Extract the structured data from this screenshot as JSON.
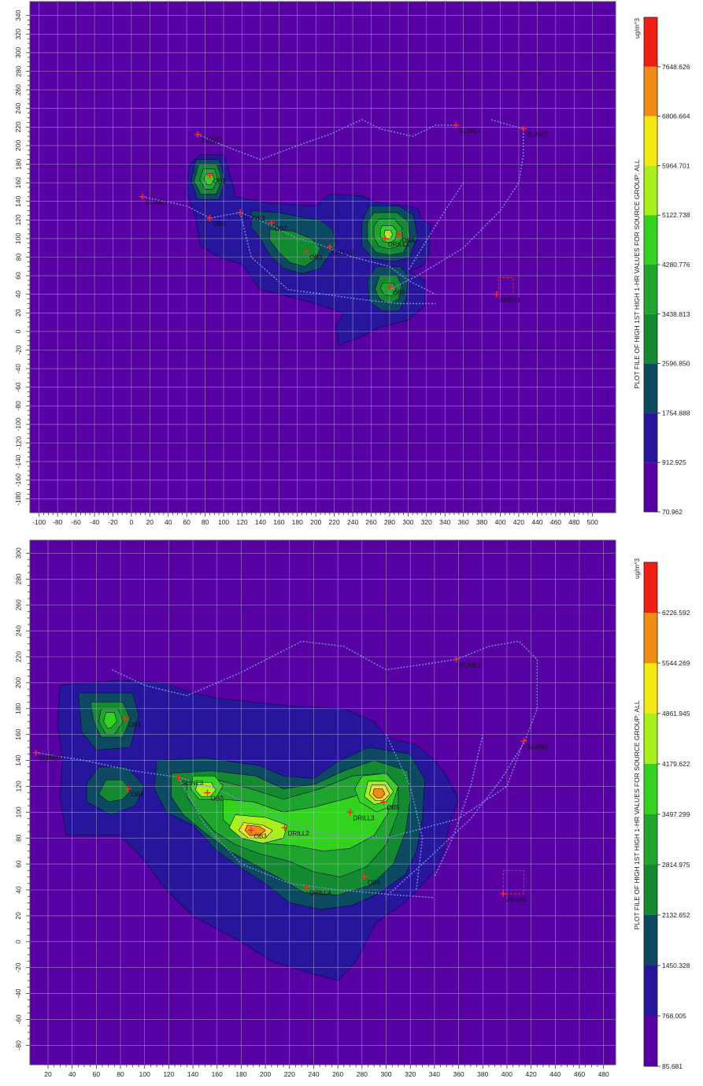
{
  "plots": [
    {
      "id": "top",
      "unit_label": "ug/m^3",
      "caption": "PLOT FILE OF  HIGH 1ST  HIGH 1-HR VALUES FOR SOURCE GROUP: ALL",
      "x_ticks": [
        -100,
        -80,
        -60,
        -40,
        -20,
        0,
        20,
        40,
        60,
        80,
        100,
        120,
        140,
        160,
        180,
        200,
        220,
        240,
        260,
        280,
        300,
        320,
        340,
        360,
        380,
        400,
        420,
        440,
        460,
        480,
        500
      ],
      "x_range": [
        -110,
        525
      ],
      "y_ticks": [
        -180,
        -160,
        -140,
        -120,
        -100,
        -80,
        -60,
        -40,
        -20,
        0,
        20,
        40,
        60,
        80,
        100,
        120,
        140,
        160,
        180,
        200,
        220,
        240,
        260,
        280,
        300,
        320,
        340
      ],
      "y_range": [
        -195,
        355
      ],
      "legend_values": [
        "7648.626",
        "6806.664",
        "5964.701",
        "5122.738",
        "4280.776",
        "3438.813",
        "2596.850",
        "1754.888",
        "912.925",
        "70.962"
      ],
      "sources": [
        {
          "label": "OB1",
          "x": 85,
          "y": 168
        },
        {
          "label": "OB2",
          "x": 152,
          "y": 117
        },
        {
          "label": "OB3",
          "x": 190,
          "y": 86
        },
        {
          "label": "DRILL2",
          "x": 215,
          "y": 91
        },
        {
          "label": "DRILL1",
          "x": 275,
          "y": 100
        },
        {
          "label": "OB6",
          "x": 290,
          "y": 104
        },
        {
          "label": "OB5",
          "x": 280,
          "y": 48
        },
        {
          "label": "SLINE1",
          "x": 72,
          "y": 212
        },
        {
          "label": "SLINE2",
          "x": 12,
          "y": 145
        },
        {
          "label": "SLINE3",
          "x": 118,
          "y": 128
        },
        {
          "label": "SLINE4",
          "x": 352,
          "y": 222
        },
        {
          "label": "SLINE5",
          "x": 425,
          "y": 218
        },
        {
          "label": "OB4",
          "x": 85,
          "y": 122
        },
        {
          "label": "AREA1",
          "x": 396,
          "y": 40
        }
      ],
      "area_box": {
        "x": [
          398,
          414
        ],
        "y": [
          40,
          58
        ]
      }
    },
    {
      "id": "bottom",
      "unit_label": "ug/m^3",
      "caption": "PLOT FILE OF  HIGH 1ST  HIGH 1-HR VALUES FOR SOURCE GROUP: ALL",
      "x_ticks": [
        20,
        40,
        60,
        80,
        100,
        120,
        140,
        160,
        180,
        200,
        220,
        240,
        260,
        280,
        300,
        320,
        340,
        360,
        380,
        400,
        420,
        440,
        460,
        480
      ],
      "x_range": [
        5,
        490
      ],
      "y_ticks": [
        -80,
        -60,
        -40,
        -20,
        0,
        20,
        40,
        60,
        80,
        100,
        120,
        140,
        160,
        180,
        200,
        220,
        240,
        260,
        280,
        300
      ],
      "y_range": [
        -95,
        310
      ],
      "legend_values": [
        "6226.592",
        "5544.269",
        "4861.945",
        "4179.622",
        "3497.299",
        "2814.975",
        "2132.652",
        "1450.328",
        "768.005",
        "85.681"
      ],
      "sources": [
        {
          "label": "OB1",
          "x": 84,
          "y": 172
        },
        {
          "label": "OB4",
          "x": 86,
          "y": 118
        },
        {
          "label": "OB2",
          "x": 152,
          "y": 115
        },
        {
          "label": "OB3",
          "x": 188,
          "y": 86
        },
        {
          "label": "DRILL2",
          "x": 216,
          "y": 88
        },
        {
          "label": "DRILL3",
          "x": 270,
          "y": 100
        },
        {
          "label": "OB5",
          "x": 298,
          "y": 108
        },
        {
          "label": "OB4",
          "x": 282,
          "y": 50
        },
        {
          "label": "DRILL4",
          "x": 234,
          "y": 42
        },
        {
          "label": "SLINE5",
          "x": 10,
          "y": 146
        },
        {
          "label": "SLINE3",
          "x": 128,
          "y": 127
        },
        {
          "label": "SLINE1",
          "x": 358,
          "y": 218
        },
        {
          "label": "SLINE2",
          "x": 414,
          "y": 155
        },
        {
          "label": "AREA1",
          "x": 397,
          "y": 37
        }
      ],
      "area_box": {
        "x": [
          397,
          414
        ],
        "y": [
          37,
          55
        ]
      }
    }
  ],
  "colors": {
    "background": "#5700a3",
    "grid": "#b9b2cf",
    "levels": [
      "#5700a3",
      "#26169c",
      "#0b4a61",
      "#138a2f",
      "#1fa52d",
      "#33d21f",
      "#a7f01a",
      "#f3e812",
      "#f08c14",
      "#f01e14"
    ]
  }
}
